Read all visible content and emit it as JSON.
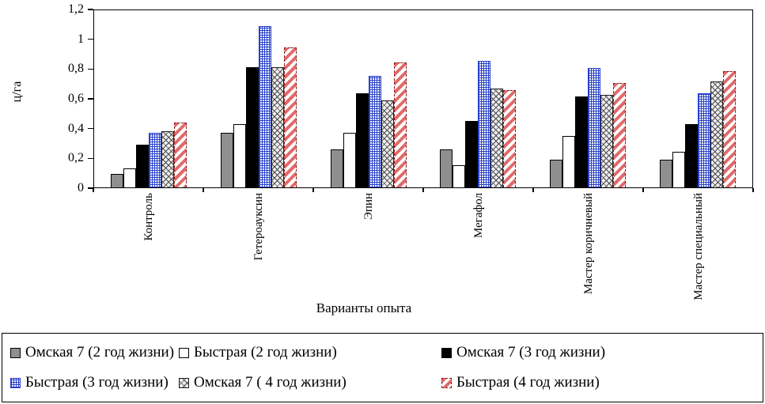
{
  "chart_data": {
    "type": "bar",
    "title": "",
    "ylabel": "ц/га",
    "xlabel": "Варианты опыта",
    "ylim": [
      0,
      1.2
    ],
    "ytick_labels": [
      "0",
      "0,2",
      "0,4",
      "0,6",
      "0,8",
      "1",
      "1,2"
    ],
    "categories": [
      "Контроль",
      "Гетероауксин",
      "Эпин",
      "Мегафол",
      "Мастер коричневый",
      "Мастер специальный"
    ],
    "series": [
      {
        "name": "Омская 7 (2 год жизни)",
        "pattern": "solid-gray",
        "values": [
          0.09,
          0.37,
          0.26,
          0.26,
          0.19,
          0.19
        ]
      },
      {
        "name": "Быстрая (2 год жизни)",
        "pattern": "solid-white",
        "values": [
          0.13,
          0.43,
          0.37,
          0.15,
          0.35,
          0.24
        ]
      },
      {
        "name": "Омская 7 (3 год жизни)",
        "pattern": "solid-black",
        "values": [
          0.29,
          0.82,
          0.64,
          0.45,
          0.62,
          0.43
        ]
      },
      {
        "name": "Быстрая (3 год жизни)",
        "pattern": "blue-grid",
        "values": [
          0.37,
          1.1,
          0.76,
          0.86,
          0.81,
          0.64
        ]
      },
      {
        "name": "Омская 7 ( 4 год жизни)",
        "pattern": "gray-crosshatch",
        "values": [
          0.38,
          0.82,
          0.59,
          0.67,
          0.63,
          0.72
        ]
      },
      {
        "name": "Быстрая (4 год жизни)",
        "pattern": "red-diagonal-dashed",
        "values": [
          0.44,
          0.95,
          0.85,
          0.66,
          0.71,
          0.79
        ]
      }
    ],
    "legend_position": "bottom",
    "grid": false
  },
  "colors": {
    "axis": "#000000",
    "bar_gray": "#8f8f8f",
    "bar_black": "#000000",
    "bar_white": "#ffffff",
    "pattern_blue": "#2840c8",
    "pattern_red": "#e06a6a",
    "pattern_red_border": "#8b1a1a",
    "crosshatch_gray": "#4a4a4a"
  }
}
